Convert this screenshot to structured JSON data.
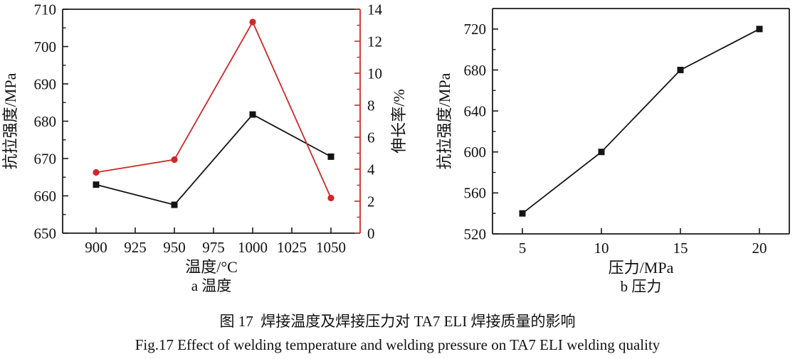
{
  "figure": {
    "caption_zh": "图 17  焊接温度及焊接压力对 TA7 ELI 焊接质量的影响",
    "caption_en": "Fig.17 Effect of welding temperature and welding pressure on TA7 ELI welding quality"
  },
  "colors": {
    "axis_black": "#1a1a1a",
    "series_black": "#141414",
    "series_red": "#d02828"
  },
  "chart_data": [
    {
      "id": "temperature",
      "type": "line",
      "panel_label": "a 温度",
      "xlabel": "温度/°C",
      "x_ticks": [
        900,
        925,
        950,
        975,
        1000,
        1025,
        1050
      ],
      "x": [
        900,
        950,
        1000,
        1050
      ],
      "left_axis": {
        "label": "抗拉强度/MPa",
        "min": 650,
        "max": 710,
        "major_ticks": [
          650,
          660,
          670,
          680,
          690,
          700,
          710
        ],
        "minor_step": 5
      },
      "right_axis": {
        "label": "伸长率/%",
        "min": 0,
        "max": 14,
        "major_ticks": [
          0,
          2,
          4,
          6,
          8,
          10,
          12,
          14
        ],
        "minor_step": 1,
        "color": "#d02828"
      },
      "series": [
        {
          "name": "抗拉强度",
          "axis": "left",
          "marker": "square",
          "color": "#141414",
          "values": [
            663,
            657.6,
            681.8,
            670.5
          ]
        },
        {
          "name": "伸长率",
          "axis": "right",
          "marker": "circle",
          "color": "#d02828",
          "values": [
            3.8,
            4.6,
            13.2,
            2.2
          ]
        }
      ]
    },
    {
      "id": "pressure",
      "type": "line",
      "panel_label": "b 压力",
      "xlabel": "压力/MPa",
      "x_ticks": [
        5,
        10,
        15,
        20
      ],
      "x": [
        5,
        10,
        15,
        20
      ],
      "left_axis": {
        "label": "抗拉强度/MPa",
        "min": 520,
        "max": 740,
        "major_ticks": [
          520,
          560,
          600,
          640,
          680,
          720
        ],
        "minor_step": 20
      },
      "series": [
        {
          "name": "抗拉强度",
          "axis": "left",
          "marker": "square",
          "color": "#141414",
          "values": [
            540,
            600,
            680,
            720
          ]
        }
      ]
    }
  ]
}
